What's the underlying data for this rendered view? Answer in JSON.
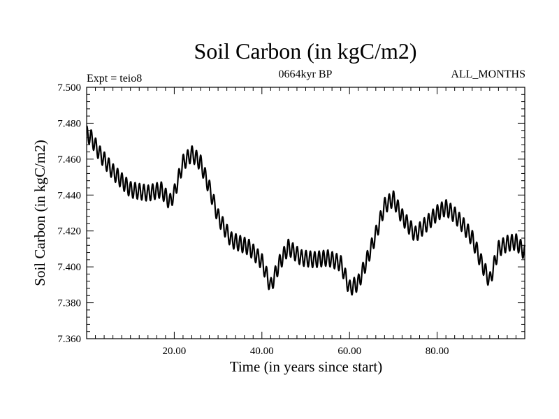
{
  "chart_data": {
    "type": "line",
    "title": "Soil Carbon (in kgC/m2)",
    "subtitle": "0664kyr BP",
    "left_label": "Expt = teio8",
    "right_label": "ALL_MONTHS",
    "xlabel": "Time (in years since start)",
    "ylabel": "Soil Carbon (in kgC/m2)",
    "xlim": [
      0,
      100
    ],
    "ylim": [
      7.36,
      7.5
    ],
    "xticks": [
      20,
      40,
      60,
      80
    ],
    "xtick_labels": [
      "20.00",
      "40.00",
      "60.00",
      "80.00"
    ],
    "xminor_step": 2,
    "yticks": [
      7.36,
      7.38,
      7.4,
      7.42,
      7.44,
      7.46,
      7.48,
      7.5
    ],
    "ytick_labels": [
      "7.360",
      "7.380",
      "7.400",
      "7.420",
      "7.440",
      "7.460",
      "7.480",
      "7.500"
    ],
    "yminor_step": 0.004,
    "grid": false,
    "line_color": "#000000",
    "seasonal_amplitude": 0.0045,
    "samples_per_year": 12,
    "trend_x": [
      0,
      1,
      3,
      6,
      10,
      14,
      17,
      19,
      20,
      22,
      24,
      26,
      28,
      30,
      33,
      37,
      40,
      42,
      44,
      46,
      49,
      52,
      55,
      58,
      60,
      62,
      64,
      66,
      68,
      70,
      72,
      75,
      78,
      80,
      82,
      84,
      86,
      88,
      90,
      92,
      94,
      96,
      98,
      100
    ],
    "trend_y": [
      7.474,
      7.472,
      7.463,
      7.453,
      7.443,
      7.441,
      7.443,
      7.436,
      7.441,
      7.458,
      7.463,
      7.458,
      7.444,
      7.428,
      7.415,
      7.411,
      7.403,
      7.389,
      7.402,
      7.411,
      7.405,
      7.404,
      7.405,
      7.402,
      7.388,
      7.391,
      7.404,
      7.418,
      7.434,
      7.438,
      7.428,
      7.418,
      7.425,
      7.43,
      7.433,
      7.429,
      7.423,
      7.416,
      7.403,
      7.392,
      7.41,
      7.413,
      7.414,
      7.408
    ]
  }
}
